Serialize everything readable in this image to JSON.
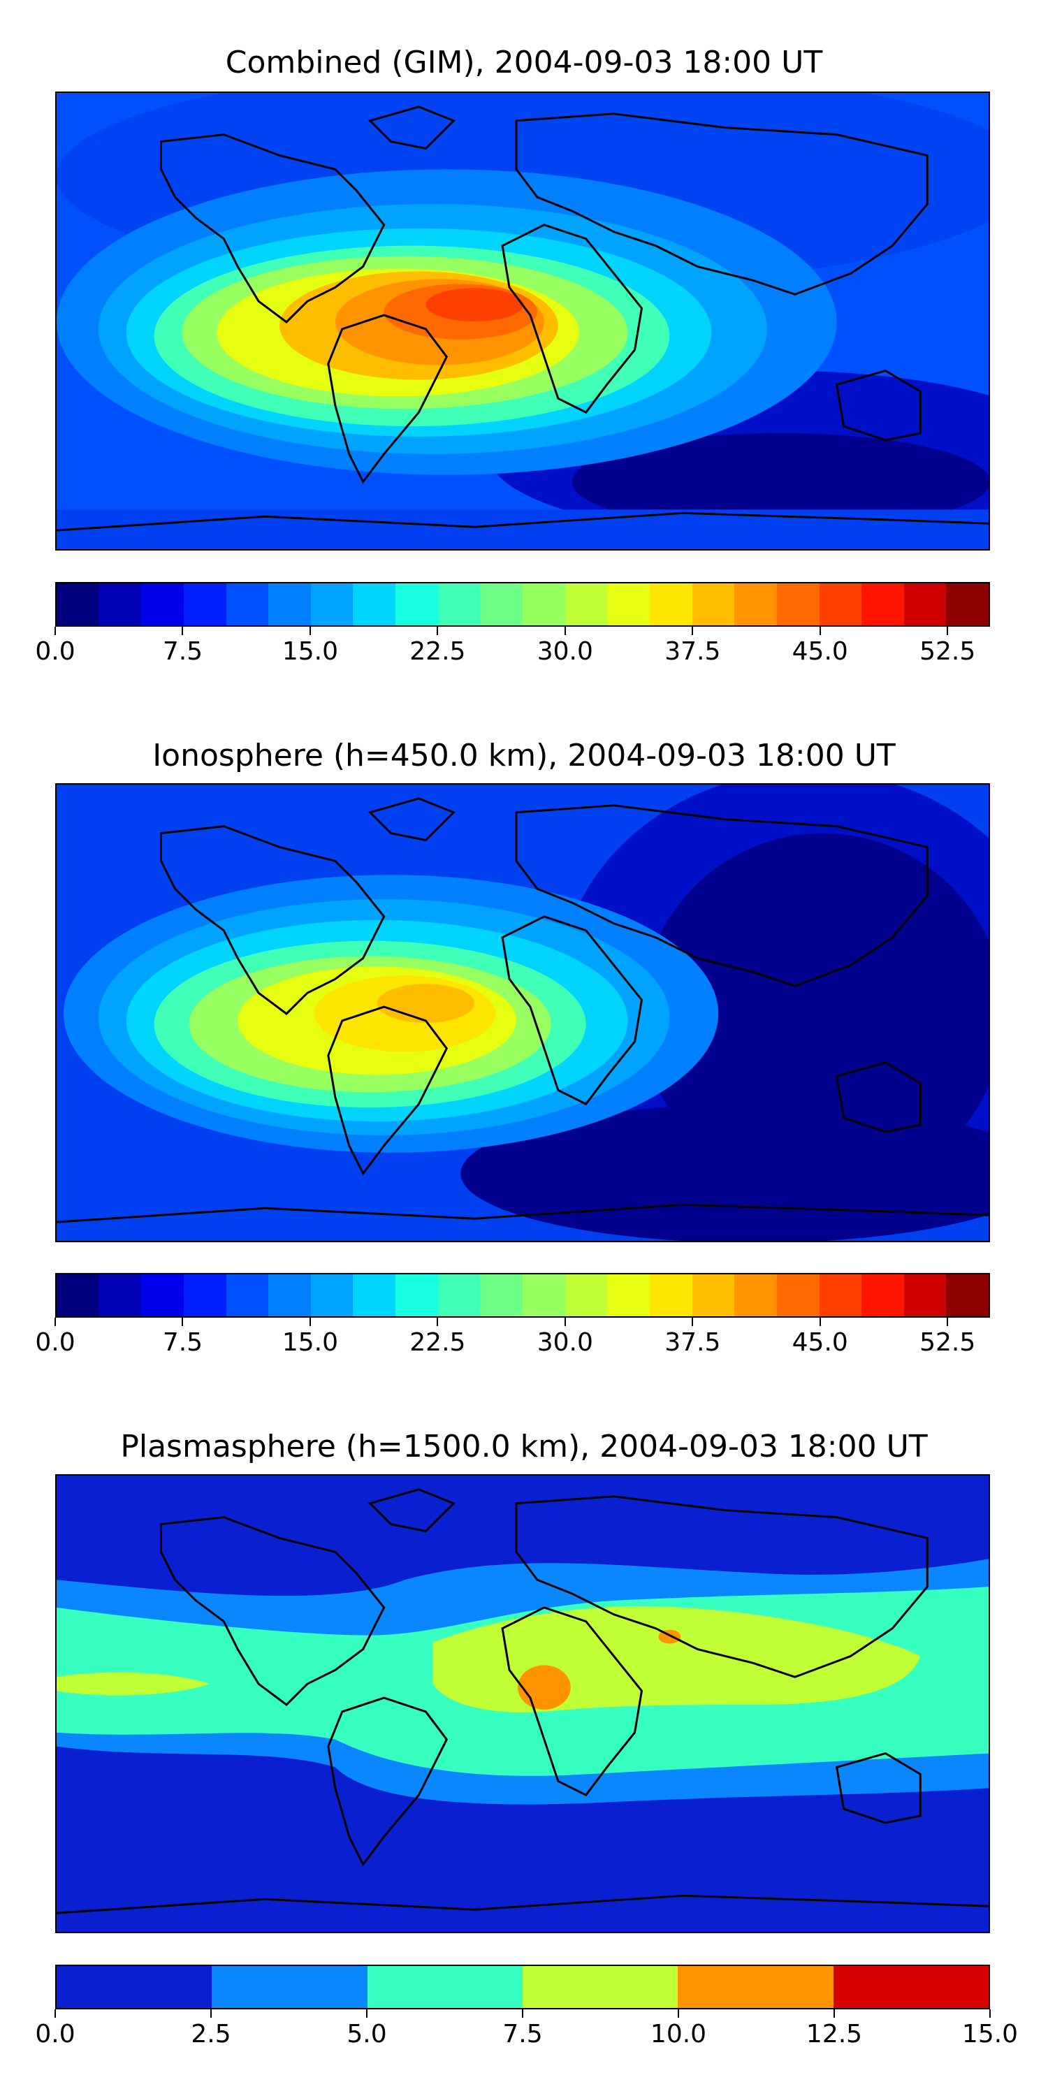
{
  "panels": [
    {
      "title": "Combined (GIM), 2004-09-03 18:00 UT",
      "colorbar": {
        "colors": [
          "#00007f",
          "#0000b4",
          "#0000ec",
          "#0020ff",
          "#0050ff",
          "#0080ff",
          "#00a4ff",
          "#00d4ff",
          "#17ffe0",
          "#40ffb7",
          "#6fff87",
          "#97ff60",
          "#c0ff36",
          "#e6ff10",
          "#ffe600",
          "#ffbd00",
          "#ff9400",
          "#ff6a00",
          "#ff3f00",
          "#ff1400",
          "#d00000",
          "#8f0000"
        ],
        "tick_labels": [
          "0.0",
          "7.5",
          "15.0",
          "22.5",
          "30.0",
          "37.5",
          "45.0",
          "52.5"
        ],
        "tick_values": [
          0,
          7.5,
          15,
          22.5,
          30,
          37.5,
          45,
          52.5
        ],
        "min": 0,
        "max": 55
      }
    },
    {
      "title": "Ionosphere  (h=450.0 km), 2004-09-03 18:00 UT",
      "colorbar": {
        "colors": [
          "#00007f",
          "#0000b4",
          "#0000ec",
          "#0020ff",
          "#0050ff",
          "#0080ff",
          "#00a4ff",
          "#00d4ff",
          "#17ffe0",
          "#40ffb7",
          "#6fff87",
          "#97ff60",
          "#c0ff36",
          "#e6ff10",
          "#ffe600",
          "#ffbd00",
          "#ff9400",
          "#ff6a00",
          "#ff3f00",
          "#ff1400",
          "#d00000",
          "#8f0000"
        ],
        "tick_labels": [
          "0.0",
          "7.5",
          "15.0",
          "22.5",
          "30.0",
          "37.5",
          "45.0",
          "52.5"
        ],
        "tick_values": [
          0,
          7.5,
          15,
          22.5,
          30,
          37.5,
          45,
          52.5
        ],
        "min": 0,
        "max": 55
      }
    },
    {
      "title": "Plasmasphere (h=1500.0 km), 2004-09-03 18:00 UT",
      "colorbar": {
        "colors": [
          "#0a1fd0",
          "#0a86ff",
          "#36ffc0",
          "#c0ff36",
          "#ff9400",
          "#d80000"
        ],
        "tick_labels": [
          "0.0",
          "2.5",
          "5.0",
          "7.5",
          "10.0",
          "12.5",
          "15.0"
        ],
        "tick_values": [
          0,
          2.5,
          5,
          7.5,
          10,
          12.5,
          15
        ],
        "min": 0,
        "max": 15
      }
    }
  ]
}
